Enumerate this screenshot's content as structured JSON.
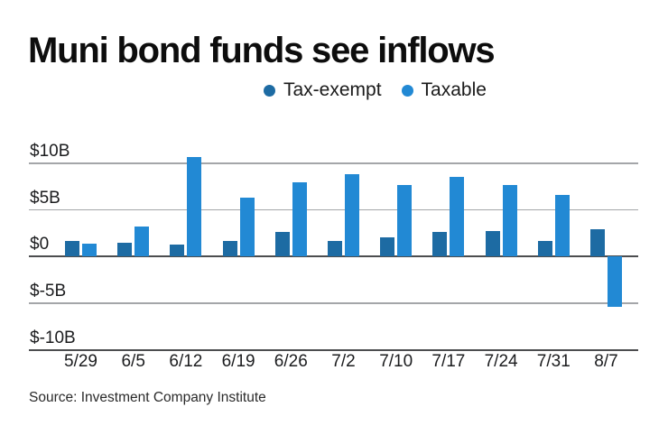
{
  "title": "Muni bond funds see inflows",
  "source": "Source: Investment Company Institute",
  "legend": [
    {
      "label": "Tax-exempt",
      "color": "#1d6ba3"
    },
    {
      "label": "Taxable",
      "color": "#2289d4"
    }
  ],
  "colors": {
    "tax_exempt": "#1d6ba3",
    "taxable": "#2289d4",
    "gridline": "#a4a6a9",
    "axis_line": "#4c4d4f",
    "text": "#1b1c1e"
  },
  "chart_data": {
    "type": "bar",
    "title": "Muni bond funds see inflows",
    "categories": [
      "5/29",
      "6/5",
      "6/12",
      "6/19",
      "6/26",
      "7/2",
      "7/10",
      "7/17",
      "7/24",
      "7/31",
      "8/7"
    ],
    "series": [
      {
        "name": "Tax-exempt",
        "color": "#1d6ba3",
        "values": [
          1.7,
          1.5,
          1.3,
          1.7,
          2.6,
          1.7,
          2.1,
          2.6,
          2.7,
          1.7,
          2.9
        ]
      },
      {
        "name": "Taxable",
        "color": "#2289d4",
        "values": [
          1.4,
          3.2,
          10.7,
          6.3,
          8.0,
          8.8,
          7.7,
          8.5,
          7.7,
          6.6,
          -5.4
        ]
      }
    ],
    "xlabel": "",
    "ylabel": "",
    "unit": "billions USD",
    "yticks": [
      {
        "value": 10,
        "label": "$10B"
      },
      {
        "value": 5,
        "label": "$5B"
      },
      {
        "value": 0,
        "label": "$0"
      },
      {
        "value": -5,
        "label": "$-5B"
      },
      {
        "value": -10,
        "label": "$-10B"
      }
    ],
    "ylim": [
      -10,
      11
    ],
    "grid": true,
    "legend_position": "top-center"
  }
}
